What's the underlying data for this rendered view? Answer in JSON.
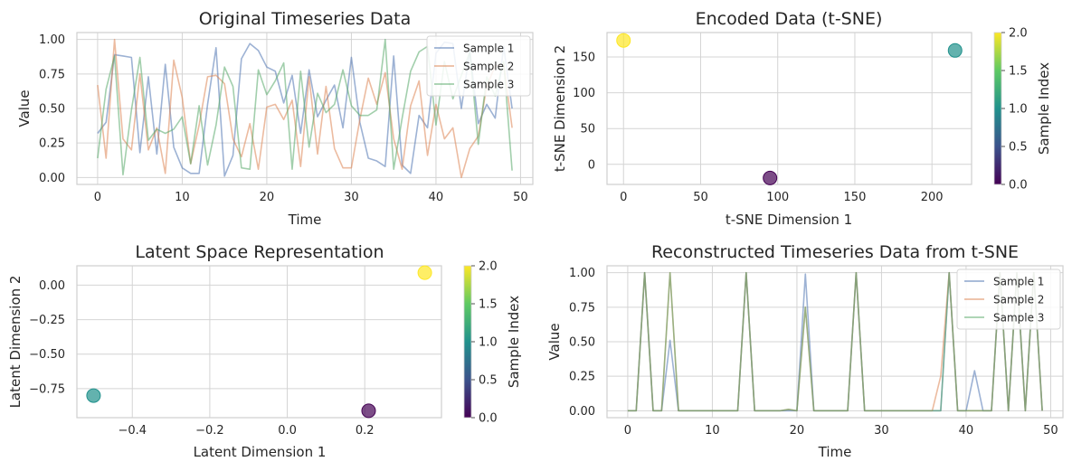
{
  "colors": {
    "series": [
      "#4c72b0",
      "#dd8452",
      "#55a868"
    ],
    "viridis": [
      "#440154",
      "#21918c",
      "#fde725"
    ]
  },
  "chart_data": [
    {
      "id": "orig",
      "type": "line",
      "title": "Original Timeseries Data",
      "xlabel": "Time",
      "ylabel": "Value",
      "xlim": [
        -2.45,
        51.45
      ],
      "ylim": [
        -0.05,
        1.05
      ],
      "xticks": [
        0,
        10,
        20,
        30,
        40,
        50
      ],
      "xtick_labels": [
        "0",
        "10",
        "20",
        "30",
        "40",
        "50"
      ],
      "yticks": [
        0,
        0.25,
        0.5,
        0.75,
        1.0
      ],
      "ytick_labels": [
        "0.00",
        "0.25",
        "0.50",
        "0.75",
        "1.00"
      ],
      "legend": "top-right",
      "series": [
        {
          "name": "Sample 1",
          "values": [
            0.32,
            0.4,
            0.89,
            0.88,
            0.87,
            0.18,
            0.73,
            0.17,
            0.82,
            0.22,
            0.07,
            0.03,
            0.03,
            0.53,
            0.94,
            0.01,
            0.16,
            0.86,
            0.97,
            0.92,
            0.8,
            0.77,
            0.54,
            0.74,
            0.32,
            0.78,
            0.44,
            0.56,
            0.67,
            0.36,
            0.87,
            0.4,
            0.14,
            0.12,
            0.08,
            0.88,
            0.09,
            0.03,
            0.45,
            0.36,
            0.9,
            0.98,
            0.97,
            0.5,
            0.92,
            0.39,
            0.53,
            0.43,
            0.95,
            0.5
          ]
        },
        {
          "name": "Sample 2",
          "values": [
            0.67,
            0.14,
            1.0,
            0.28,
            0.2,
            0.75,
            0.2,
            0.36,
            0.03,
            0.85,
            0.58,
            0.1,
            0.38,
            0.73,
            0.74,
            0.68,
            0.28,
            0.15,
            0.39,
            0.06,
            0.51,
            0.53,
            0.42,
            0.56,
            0.08,
            0.73,
            0.17,
            0.66,
            0.21,
            0.07,
            0.07,
            0.42,
            0.72,
            0.53,
            0.76,
            0.28,
            0.06,
            0.52,
            0.7,
            0.16,
            0.53,
            0.28,
            0.36,
            0.0,
            0.21,
            0.3,
            0.66,
            0.81,
            0.82,
            0.36
          ]
        },
        {
          "name": "Sample 3",
          "values": [
            0.14,
            0.64,
            0.88,
            0.02,
            0.49,
            0.87,
            0.27,
            0.35,
            0.32,
            0.35,
            0.44,
            0.1,
            0.52,
            0.09,
            0.38,
            0.8,
            0.66,
            0.07,
            0.06,
            0.78,
            0.6,
            0.7,
            0.83,
            0.06,
            0.77,
            0.22,
            0.61,
            0.47,
            0.53,
            0.78,
            0.52,
            0.45,
            0.45,
            0.49,
            1.0,
            0.06,
            0.43,
            0.77,
            0.91,
            0.95,
            0.38,
            0.84,
            0.57,
            0.74,
            0.91,
            0.24,
            0.73,
            0.59,
            0.84,
            0.05
          ]
        }
      ]
    },
    {
      "id": "tsne",
      "type": "scatter",
      "title": "Encoded Data (t-SNE)",
      "xlabel": "t-SNE Dimension 1",
      "ylabel": "t-SNE Dimension 2",
      "xlim": [
        -10.7,
        225.7
      ],
      "ylim": [
        -28,
        184
      ],
      "xticks": [
        0,
        50,
        100,
        150,
        200
      ],
      "xtick_labels": [
        "0",
        "50",
        "100",
        "150",
        "200"
      ],
      "yticks": [
        0,
        50,
        100,
        150
      ],
      "ytick_labels": [
        "0",
        "50",
        "100",
        "150"
      ],
      "points": [
        {
          "x": 95,
          "y": -19,
          "c": 0
        },
        {
          "x": 215,
          "y": 159,
          "c": 1
        },
        {
          "x": 0,
          "y": 173,
          "c": 2
        }
      ],
      "colorbar": {
        "label": "Sample Index",
        "min": 0,
        "max": 2,
        "ticks": [
          0,
          0.5,
          1.0,
          1.5,
          2.0
        ],
        "tick_labels": [
          "0.0",
          "0.5",
          "1.0",
          "1.5",
          "2.0"
        ]
      }
    },
    {
      "id": "latent",
      "type": "scatter",
      "title": "Latent Space Representation",
      "xlabel": "Latent Dimension 1",
      "ylabel": "Latent Dimension 2",
      "xlim": [
        -0.543,
        0.398
      ],
      "ylim": [
        -0.96,
        0.14
      ],
      "xticks": [
        -0.4,
        -0.2,
        0.0,
        0.2
      ],
      "xtick_labels": [
        "−0.4",
        "−0.2",
        "0.0",
        "0.2"
      ],
      "yticks": [
        0.0,
        -0.25,
        -0.5,
        -0.75
      ],
      "ytick_labels": [
        "0.00",
        "−0.25",
        "−0.50",
        "−0.75"
      ],
      "points": [
        {
          "x": 0.21,
          "y": -0.91,
          "c": 0
        },
        {
          "x": -0.5,
          "y": -0.8,
          "c": 1
        },
        {
          "x": 0.355,
          "y": 0.09,
          "c": 2
        }
      ],
      "colorbar": {
        "label": "Sample Index",
        "min": 0,
        "max": 2,
        "ticks": [
          0,
          0.5,
          1.0,
          1.5,
          2.0
        ],
        "tick_labels": [
          "0.0",
          "0.5",
          "1.0",
          "1.5",
          "2.0"
        ]
      }
    },
    {
      "id": "recon",
      "type": "line",
      "title": "Reconstructed Timeseries Data from t-SNE",
      "xlabel": "Time",
      "ylabel": "Value",
      "xlim": [
        -2.45,
        51.45
      ],
      "ylim": [
        -0.05,
        1.05
      ],
      "xticks": [
        0,
        10,
        20,
        30,
        40,
        50
      ],
      "xtick_labels": [
        "0",
        "10",
        "20",
        "30",
        "40",
        "50"
      ],
      "yticks": [
        0,
        0.25,
        0.5,
        0.75,
        1.0
      ],
      "ytick_labels": [
        "0.00",
        "0.25",
        "0.50",
        "0.75",
        "1.00"
      ],
      "legend": "top-right",
      "series": [
        {
          "name": "Sample 1",
          "values": [
            0,
            0,
            1,
            0,
            0,
            0.51,
            0,
            0,
            0,
            0,
            0,
            0,
            0,
            0,
            1,
            0,
            0,
            0,
            0,
            0,
            0,
            0.99,
            0,
            0,
            0,
            0,
            0,
            1,
            0,
            0,
            0,
            0,
            0,
            0,
            0,
            0,
            0,
            0,
            1,
            0,
            0,
            0.29,
            0,
            0,
            1,
            0,
            1,
            0,
            1,
            0
          ]
        },
        {
          "name": "Sample 2",
          "values": [
            0,
            0,
            1,
            0,
            0,
            1,
            0,
            0,
            0,
            0,
            0,
            0,
            0,
            0,
            1,
            0,
            0,
            0,
            0,
            0.01,
            0,
            0.75,
            0,
            0,
            0,
            0,
            0,
            1,
            0,
            0,
            0,
            0,
            0,
            0,
            0,
            0,
            0,
            0.25,
            1,
            0,
            0,
            0,
            0,
            0,
            1,
            0,
            1,
            0,
            1,
            0
          ]
        },
        {
          "name": "Sample 3",
          "values": [
            0,
            0,
            1,
            0,
            0,
            1,
            0,
            0,
            0,
            0,
            0,
            0,
            0,
            0,
            1,
            0,
            0,
            0,
            0,
            0.01,
            0,
            0.75,
            0,
            0,
            0,
            0,
            0,
            1,
            0,
            0,
            0,
            0,
            0,
            0,
            0,
            0,
            0,
            0,
            1,
            0,
            0,
            0,
            0,
            0,
            1,
            0,
            1,
            0,
            1,
            0
          ]
        }
      ]
    }
  ]
}
